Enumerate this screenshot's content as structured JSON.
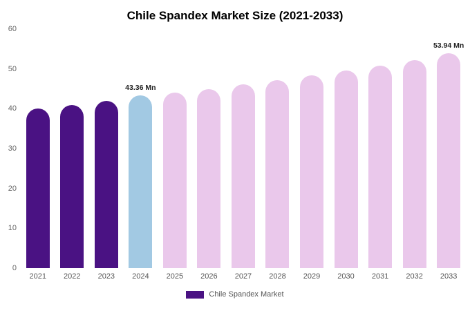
{
  "chart_data": {
    "type": "bar",
    "title": "Chile Spandex Market Size (2021-2033)",
    "categories": [
      "2021",
      "2022",
      "2023",
      "2024",
      "2025",
      "2026",
      "2027",
      "2028",
      "2029",
      "2030",
      "2031",
      "2032",
      "2033"
    ],
    "values": [
      40.0,
      40.9,
      41.9,
      43.36,
      44.0,
      45.0,
      46.1,
      47.2,
      48.4,
      49.6,
      50.8,
      52.2,
      53.94
    ],
    "bar_color_keys": [
      "historical",
      "historical",
      "historical",
      "current",
      "forecast",
      "forecast",
      "forecast",
      "forecast",
      "forecast",
      "forecast",
      "forecast",
      "forecast",
      "forecast"
    ],
    "colors": {
      "historical": "#4A1283",
      "current": "#A2C9E3",
      "forecast": "#EAC8EB"
    },
    "annotations": [
      {
        "index": 3,
        "text": "43.36 Mn"
      },
      {
        "index": 12,
        "text": "53.94 Mn"
      }
    ],
    "xlabel": "",
    "ylabel": "",
    "ylim": [
      0,
      60
    ],
    "yticks": [
      0,
      10,
      20,
      30,
      40,
      50,
      60
    ],
    "grid": false,
    "legend_position": "bottom",
    "legend": [
      {
        "label": "Chile Spandex Market",
        "color": "#4A1283"
      }
    ]
  }
}
